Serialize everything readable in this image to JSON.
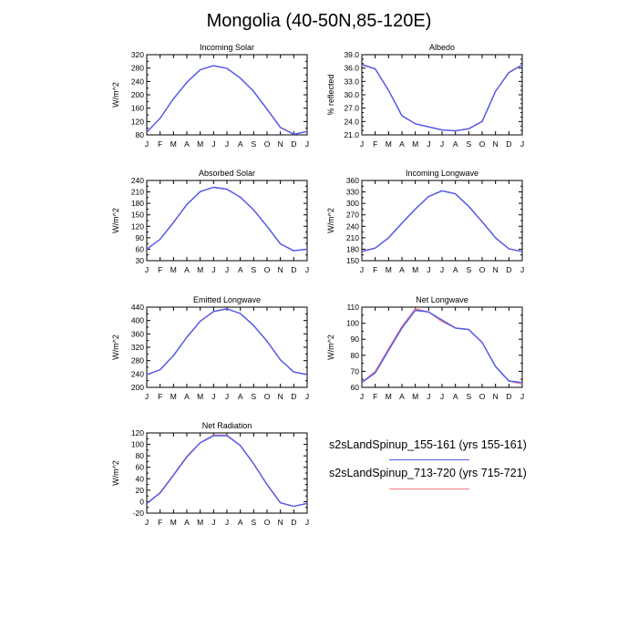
{
  "title": "Mongolia (40-50N,85-120E)",
  "legend": [
    {
      "label": "s2sLandSpinup_155-161 (yrs 155-161)",
      "color": "#4b5cf0"
    },
    {
      "label": "s2sLandSpinup_713-720 (yrs 715-721)",
      "color": "#f07a86"
    }
  ],
  "chart_data": [
    {
      "type": "line",
      "title": "Incoming Solar",
      "ylabel": "W/m^2",
      "categories": [
        "J",
        "F",
        "M",
        "A",
        "M",
        "J",
        "J",
        "A",
        "S",
        "O",
        "N",
        "D",
        "J"
      ],
      "ylim": [
        80,
        320
      ],
      "ytick_step": 40,
      "minor_step": 20,
      "decimals": 0,
      "series": [
        {
          "name": "s2sLandSpinup_155-161 (yrs 155-161)",
          "values": [
            88,
            130,
            188,
            237,
            275,
            287,
            279,
            250,
            210,
            157,
            102,
            82,
            90
          ]
        },
        {
          "name": "s2sLandSpinup_713-720 (yrs 715-721)",
          "values": [
            88,
            130,
            188,
            237,
            275,
            287,
            279,
            250,
            210,
            157,
            102,
            82,
            90
          ]
        }
      ]
    },
    {
      "type": "line",
      "title": "Albedo",
      "ylabel": "% reflected",
      "categories": [
        "J",
        "F",
        "M",
        "A",
        "M",
        "J",
        "J",
        "A",
        "S",
        "O",
        "N",
        "D",
        "J"
      ],
      "ylim": [
        21,
        39
      ],
      "ytick_step": 3,
      "minor_step": 1,
      "decimals": 1,
      "series": [
        {
          "name": "s2sLandSpinup_155-161 (yrs 155-161)",
          "values": [
            36.8,
            35.8,
            31.0,
            25.3,
            23.5,
            22.8,
            22.1,
            21.9,
            22.4,
            24.0,
            30.8,
            35.0,
            36.7
          ]
        },
        {
          "name": "s2sLandSpinup_713-720 (yrs 715-721)",
          "values": [
            36.8,
            35.8,
            31.0,
            25.3,
            23.5,
            22.8,
            22.1,
            21.9,
            22.4,
            24.0,
            30.8,
            35.0,
            36.7
          ]
        }
      ]
    },
    {
      "type": "line",
      "title": "Absorbed Solar",
      "ylabel": "W/m^2",
      "categories": [
        "J",
        "F",
        "M",
        "A",
        "M",
        "J",
        "J",
        "A",
        "S",
        "O",
        "N",
        "D",
        "J"
      ],
      "ylim": [
        30,
        240
      ],
      "ytick_step": 30,
      "minor_step": 15,
      "decimals": 0,
      "series": [
        {
          "name": "s2sLandSpinup_155-161 (yrs 155-161)",
          "values": [
            60,
            86,
            130,
            177,
            211,
            222,
            217,
            196,
            163,
            120,
            74,
            56,
            60
          ]
        },
        {
          "name": "s2sLandSpinup_713-720 (yrs 715-721)",
          "values": [
            60,
            86,
            130,
            177,
            211,
            222,
            217,
            196,
            163,
            120,
            74,
            56,
            60
          ]
        }
      ]
    },
    {
      "type": "line",
      "title": "Incoming Longwave",
      "ylabel": "W/m^2",
      "categories": [
        "J",
        "F",
        "M",
        "A",
        "M",
        "J",
        "J",
        "A",
        "S",
        "O",
        "N",
        "D",
        "J"
      ],
      "ylim": [
        150,
        360
      ],
      "ytick_step": 30,
      "minor_step": 15,
      "decimals": 0,
      "series": [
        {
          "name": "s2sLandSpinup_155-161 (yrs 155-161)",
          "values": [
            174,
            183,
            210,
            248,
            285,
            318,
            333,
            325,
            292,
            252,
            210,
            181,
            174
          ]
        },
        {
          "name": "s2sLandSpinup_713-720 (yrs 715-721)",
          "values": [
            174,
            183,
            210,
            248,
            285,
            318,
            333,
            325,
            292,
            252,
            210,
            181,
            174
          ]
        }
      ]
    },
    {
      "type": "line",
      "title": "Emitted Longwave",
      "ylabel": "W/m^2",
      "categories": [
        "J",
        "F",
        "M",
        "A",
        "M",
        "J",
        "J",
        "A",
        "S",
        "O",
        "N",
        "D",
        "J"
      ],
      "ylim": [
        200,
        440
      ],
      "ytick_step": 40,
      "minor_step": 20,
      "decimals": 0,
      "series": [
        {
          "name": "s2sLandSpinup_155-161 (yrs 155-161)",
          "values": [
            238,
            253,
            295,
            350,
            398,
            427,
            435,
            421,
            385,
            338,
            282,
            246,
            238
          ]
        },
        {
          "name": "s2sLandSpinup_713-720 (yrs 715-721)",
          "values": [
            238,
            253,
            295,
            350,
            398,
            427,
            435,
            421,
            385,
            338,
            282,
            246,
            238
          ]
        }
      ]
    },
    {
      "type": "line",
      "title": "Net Longwave",
      "ylabel": "W/m^2",
      "categories": [
        "J",
        "F",
        "M",
        "A",
        "M",
        "J",
        "J",
        "A",
        "S",
        "O",
        "N",
        "D",
        "J"
      ],
      "ylim": [
        60,
        110
      ],
      "ytick_step": 10,
      "minor_step": 5,
      "decimals": 0,
      "series": [
        {
          "name": "s2sLandSpinup_155-161 (yrs 155-161)",
          "values": [
            63,
            69,
            83,
            97,
            108,
            107,
            102,
            97,
            96,
            88,
            73,
            64,
            63
          ]
        },
        {
          "name": "s2sLandSpinup_713-720 (yrs 715-721)",
          "values": [
            63,
            70,
            84,
            98,
            109,
            107,
            101,
            97,
            96,
            88,
            73,
            64,
            62
          ]
        }
      ]
    },
    {
      "type": "line",
      "title": "Net Radiation",
      "ylabel": "W/m^2",
      "categories": [
        "J",
        "F",
        "M",
        "A",
        "M",
        "J",
        "J",
        "A",
        "S",
        "O",
        "N",
        "D",
        "J"
      ],
      "ylim": [
        -20,
        120
      ],
      "ytick_step": 20,
      "minor_step": 10,
      "decimals": 0,
      "series": [
        {
          "name": "s2sLandSpinup_155-161 (yrs 155-161)",
          "values": [
            -3,
            15,
            46,
            78,
            103,
            115,
            115,
            98,
            66,
            30,
            -2,
            -8,
            -3
          ]
        },
        {
          "name": "s2sLandSpinup_713-720 (yrs 715-721)",
          "values": [
            -3,
            16,
            47,
            79,
            103,
            116,
            116,
            98,
            66,
            30,
            -2,
            -8,
            -3
          ]
        }
      ]
    }
  ]
}
